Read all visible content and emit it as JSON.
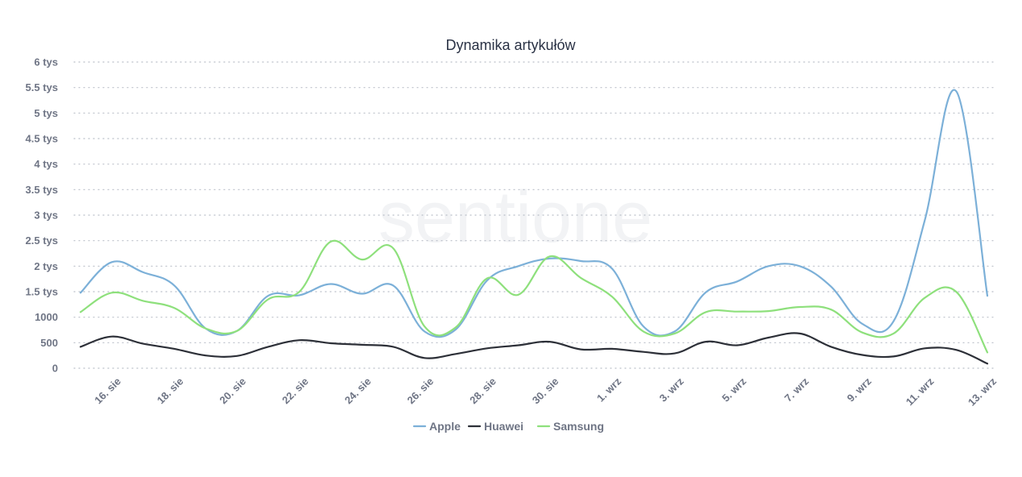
{
  "chart_data": {
    "type": "line",
    "title": "Dynamika artykułów",
    "xlabel": "",
    "ylabel": "",
    "ylim": [
      0,
      6000
    ],
    "y_ticks": [
      {
        "value": 0,
        "label": "0"
      },
      {
        "value": 500,
        "label": "500"
      },
      {
        "value": 1000,
        "label": "1000"
      },
      {
        "value": 1500,
        "label": "1.5 tys"
      },
      {
        "value": 2000,
        "label": "2 tys"
      },
      {
        "value": 2500,
        "label": "2.5 tys"
      },
      {
        "value": 3000,
        "label": "3 tys"
      },
      {
        "value": 3500,
        "label": "3.5 tys"
      },
      {
        "value": 4000,
        "label": "4 tys"
      },
      {
        "value": 4500,
        "label": "4.5 tys"
      },
      {
        "value": 5000,
        "label": "5 tys"
      },
      {
        "value": 5500,
        "label": "5.5 tys"
      },
      {
        "value": 6000,
        "label": "6 tys"
      }
    ],
    "x_tick_labels": [
      "16. sie",
      "18. sie",
      "20. sie",
      "22. sie",
      "24. sie",
      "26. sie",
      "28. sie",
      "30. sie",
      "1. wrz",
      "3. wrz",
      "5. wrz",
      "7. wrz",
      "9. wrz",
      "11. wrz",
      "13. wrz"
    ],
    "grid": true,
    "legend_position": "bottom-center",
    "series": [
      {
        "name": "Apple",
        "color": "#7cb0d8",
        "values": [
          1480,
          2080,
          1880,
          1620,
          780,
          730,
          1420,
          1430,
          1650,
          1460,
          1620,
          720,
          760,
          1720,
          2000,
          2150,
          2100,
          1950,
          820,
          720,
          1490,
          1700,
          2000,
          2000,
          1600,
          870,
          920,
          2900,
          5430,
          1420
        ]
      },
      {
        "name": "Huawei",
        "color": "#2d3038",
        "values": [
          420,
          620,
          480,
          380,
          250,
          240,
          420,
          550,
          490,
          460,
          420,
          200,
          280,
          390,
          450,
          520,
          370,
          380,
          320,
          290,
          520,
          450,
          600,
          680,
          420,
          260,
          230,
          390,
          360,
          90
        ]
      },
      {
        "name": "Samsung",
        "color": "#8ee07c",
        "values": [
          1100,
          1480,
          1320,
          1180,
          780,
          730,
          1350,
          1500,
          2480,
          2130,
          2350,
          820,
          800,
          1760,
          1440,
          2190,
          1770,
          1400,
          720,
          680,
          1100,
          1110,
          1120,
          1200,
          1150,
          700,
          680,
          1380,
          1500,
          310
        ]
      }
    ]
  },
  "watermark": "sentione"
}
